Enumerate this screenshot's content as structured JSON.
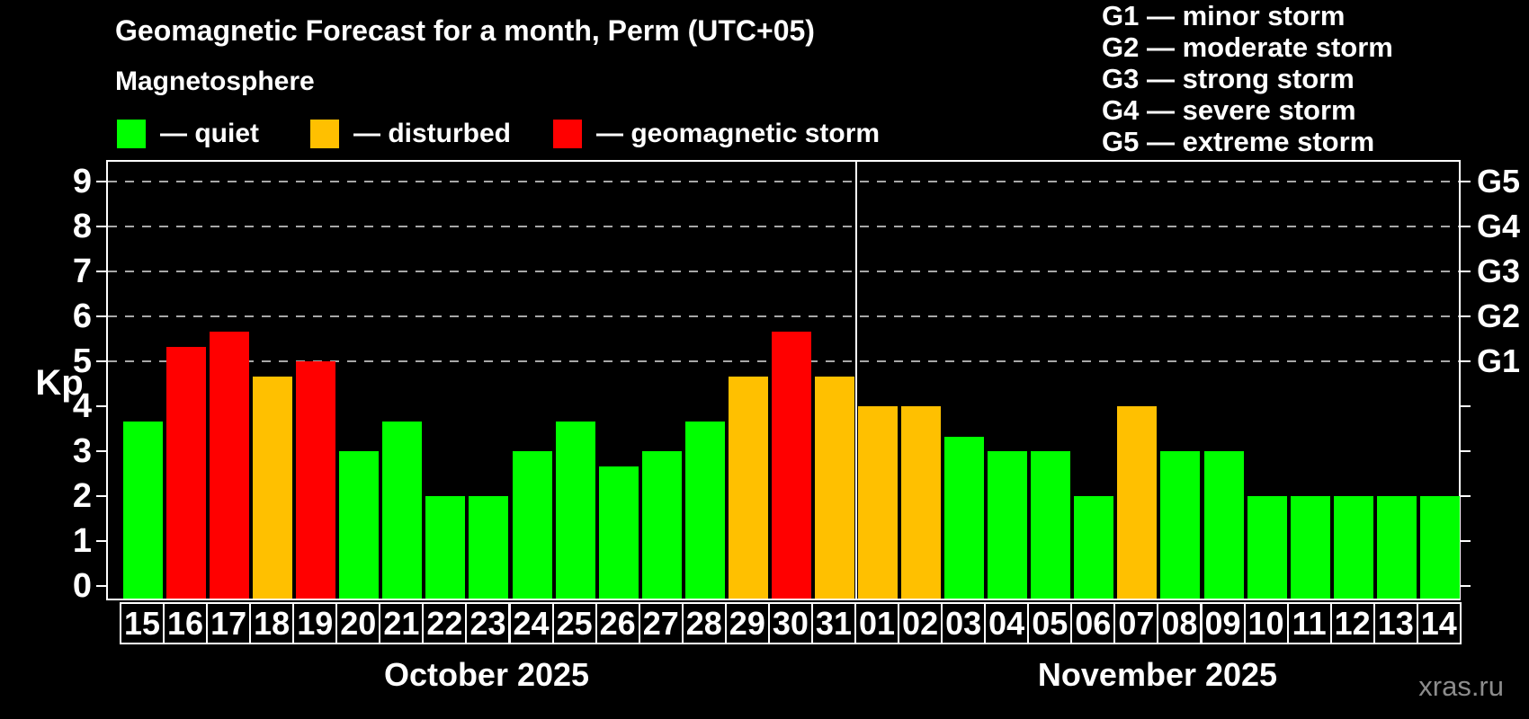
{
  "title": "Geomagnetic Forecast for a month, Perm (UTC+05)",
  "subtitle": "Magnetosphere",
  "legend": {
    "items": [
      {
        "key": "quiet",
        "label": "— quiet"
      },
      {
        "key": "disturbed",
        "label": "— disturbed"
      },
      {
        "key": "storm",
        "label": "— geomagnetic storm"
      }
    ]
  },
  "g_legend": [
    "G1 — minor storm",
    "G2 — moderate storm",
    "G3 — strong storm",
    "G4 — severe storm",
    "G5 — extreme storm"
  ],
  "watermark": "xras.ru",
  "colors": {
    "quiet": "#00ff00",
    "disturbed": "#ffc000",
    "storm": "#ff0000",
    "axis": "#ffffff",
    "grid": "#a8a8a8",
    "watermark": "#8c8c8c",
    "background": "#000000"
  },
  "chart_data": {
    "type": "bar",
    "ylabel": "Kp",
    "ylim": [
      0,
      9.5
    ],
    "yticks": [
      0,
      1,
      2,
      3,
      4,
      5,
      6,
      7,
      8,
      9
    ],
    "grid_levels": [
      5,
      6,
      7,
      8,
      9
    ],
    "grid_style": "dashed",
    "right_axis": [
      {
        "kp": 5,
        "label": "G1"
      },
      {
        "kp": 6,
        "label": "G2"
      },
      {
        "kp": 7,
        "label": "G3"
      },
      {
        "kp": 8,
        "label": "G4"
      },
      {
        "kp": 9,
        "label": "G5"
      }
    ],
    "legend_position": "top-left",
    "months": [
      {
        "label": "October 2025",
        "days": [
          {
            "date": "15",
            "kp": 3.67,
            "state": "quiet"
          },
          {
            "date": "16",
            "kp": 5.33,
            "state": "storm"
          },
          {
            "date": "17",
            "kp": 5.67,
            "state": "storm"
          },
          {
            "date": "18",
            "kp": 4.67,
            "state": "disturbed"
          },
          {
            "date": "19",
            "kp": 5.0,
            "state": "storm"
          },
          {
            "date": "20",
            "kp": 3.0,
            "state": "quiet"
          },
          {
            "date": "21",
            "kp": 3.67,
            "state": "quiet"
          },
          {
            "date": "22",
            "kp": 2.0,
            "state": "quiet"
          },
          {
            "date": "23",
            "kp": 2.0,
            "state": "quiet"
          },
          {
            "date": "24",
            "kp": 3.0,
            "state": "quiet"
          },
          {
            "date": "25",
            "kp": 3.67,
            "state": "quiet"
          },
          {
            "date": "26",
            "kp": 2.67,
            "state": "quiet"
          },
          {
            "date": "27",
            "kp": 3.0,
            "state": "quiet"
          },
          {
            "date": "28",
            "kp": 3.67,
            "state": "quiet"
          },
          {
            "date": "29",
            "kp": 4.67,
            "state": "disturbed"
          },
          {
            "date": "30",
            "kp": 5.67,
            "state": "storm"
          },
          {
            "date": "31",
            "kp": 4.67,
            "state": "disturbed"
          }
        ]
      },
      {
        "label": "November 2025",
        "days": [
          {
            "date": "01",
            "kp": 4.0,
            "state": "disturbed"
          },
          {
            "date": "02",
            "kp": 4.0,
            "state": "disturbed"
          },
          {
            "date": "03",
            "kp": 3.33,
            "state": "quiet"
          },
          {
            "date": "04",
            "kp": 3.0,
            "state": "quiet"
          },
          {
            "date": "05",
            "kp": 3.0,
            "state": "quiet"
          },
          {
            "date": "06",
            "kp": 2.0,
            "state": "quiet"
          },
          {
            "date": "07",
            "kp": 4.0,
            "state": "disturbed"
          },
          {
            "date": "08",
            "kp": 3.0,
            "state": "quiet"
          },
          {
            "date": "09",
            "kp": 3.0,
            "state": "quiet"
          },
          {
            "date": "10",
            "kp": 2.0,
            "state": "quiet"
          },
          {
            "date": "11",
            "kp": 2.0,
            "state": "quiet"
          },
          {
            "date": "12",
            "kp": 2.0,
            "state": "quiet"
          },
          {
            "date": "13",
            "kp": 2.0,
            "state": "quiet"
          },
          {
            "date": "14",
            "kp": 2.0,
            "state": "quiet"
          }
        ]
      }
    ]
  }
}
